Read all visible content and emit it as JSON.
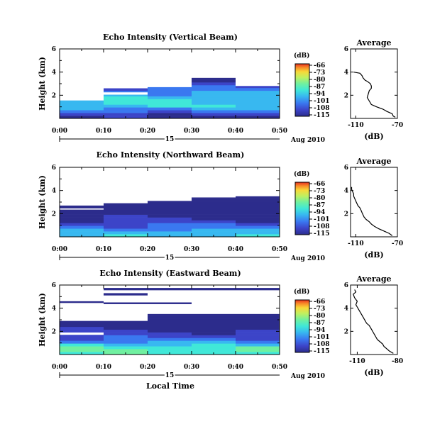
{
  "colors": {
    "scale": [
      "#2c2c8c",
      "#3c44c8",
      "#3a78f0",
      "#38b8f0",
      "#40e8d8",
      "#70f0a0",
      "#c0f060",
      "#f8d838",
      "#f88c28",
      "#e83020"
    ],
    "line": "#000000",
    "background": "#ffffff"
  },
  "common": {
    "xlabel": "Local Time",
    "date_day": "15",
    "date_month_year": "Aug 2010",
    "xticks": [
      "0:00",
      "0:10",
      "0:20",
      "0:30",
      "0:40",
      "0:50"
    ],
    "yticks_main": [
      "2",
      "4",
      "6"
    ],
    "ylabel_main": "Height (km)",
    "colorbar_unit": "(dB)",
    "colorbar_ticks": [
      "-66",
      "-73",
      "-80",
      "-87",
      "-94",
      "-101",
      "-108",
      "-115"
    ],
    "avg_title": "Average",
    "avg_xlabel": "(dB)",
    "avg_yticks": [
      "2",
      "4",
      "6"
    ]
  },
  "chart_data": [
    {
      "type": "heatmap",
      "title": "Echo Intensity (Vertical Beam)",
      "x_range_min": [
        0,
        50
      ],
      "ylim_km": [
        0,
        6
      ],
      "zlim_db": [
        -115,
        -66
      ],
      "ceiling_steps_km": [
        {
          "from_min": 0,
          "to_min": 10,
          "top_km": 1.55
        },
        {
          "from_min": 10,
          "to_min": 20,
          "top_km": 2.6
        },
        {
          "from_min": 20,
          "to_min": 30,
          "top_km": 2.7
        },
        {
          "from_min": 30,
          "to_min": 40,
          "top_km": 3.5
        },
        {
          "from_min": 40,
          "to_min": 50,
          "top_km": 2.8
        }
      ],
      "gaps_km": [
        {
          "from_min": 10,
          "to_min": 20,
          "y0": 2.05,
          "y1": 2.25
        }
      ],
      "profile_db": [
        -112,
        -108,
        -104,
        -100,
        -97,
        -95,
        -95,
        -97,
        -99,
        -101,
        -103,
        -105,
        -107,
        -109,
        -111,
        -113,
        -114,
        -115,
        -115,
        -115,
        -115,
        -115,
        -115,
        -115,
        -115
      ],
      "average": {
        "xlim_db": [
          -115,
          -70
        ],
        "xticks": [
          "-110",
          "-70"
        ],
        "height_km": [
          0.1,
          0.2,
          0.4,
          0.6,
          0.8,
          1.0,
          1.2,
          1.5,
          1.8,
          2.1,
          2.4,
          2.6,
          2.8,
          3.0,
          3.2,
          3.3,
          3.5,
          3.7,
          3.9,
          4.0
        ],
        "value_db": [
          -72,
          -74,
          -75,
          -80,
          -84,
          -90,
          -95,
          -97,
          -99,
          -98,
          -97,
          -95,
          -95,
          -96,
          -99,
          -101,
          -103,
          -104,
          -106,
          -112
        ]
      }
    },
    {
      "type": "heatmap",
      "title": "Echo Intensity (Northward Beam)",
      "x_range_min": [
        0,
        50
      ],
      "ylim_km": [
        0,
        6
      ],
      "zlim_db": [
        -115,
        -66
      ],
      "ceiling_steps_km": [
        {
          "from_min": 0,
          "to_min": 10,
          "top_km": 2.7
        },
        {
          "from_min": 10,
          "to_min": 20,
          "top_km": 2.9
        },
        {
          "from_min": 20,
          "to_min": 30,
          "top_km": 3.1
        },
        {
          "from_min": 30,
          "to_min": 40,
          "top_km": 3.4
        },
        {
          "from_min": 40,
          "to_min": 50,
          "top_km": 3.5
        }
      ],
      "gaps_km": [
        {
          "from_min": 0,
          "to_min": 10,
          "y0": 2.35,
          "y1": 2.45
        }
      ],
      "profile_db": [
        -96,
        -98,
        -100,
        -103,
        -106,
        -108,
        -110,
        -112,
        -113,
        -114,
        -115,
        -115,
        -115,
        -115,
        -115,
        -115,
        -115,
        -115,
        -115,
        -115,
        -115,
        -115,
        -115,
        -115,
        -115
      ],
      "average": {
        "xlim_db": [
          -115,
          -70
        ],
        "xticks": [
          "-110",
          "-70"
        ],
        "height_km": [
          0.1,
          0.3,
          0.5,
          0.7,
          0.9,
          1.1,
          1.3,
          1.5,
          1.7,
          1.9,
          2.1,
          2.3,
          2.5,
          2.7,
          2.9,
          3.1,
          3.3,
          3.5,
          3.7,
          3.9,
          4.1,
          4.3
        ],
        "value_db": [
          -75,
          -78,
          -83,
          -88,
          -92,
          -95,
          -97,
          -100,
          -102,
          -103,
          -104,
          -105,
          -106,
          -108,
          -109,
          -110,
          -111,
          -112,
          -112,
          -113,
          -114,
          -114
        ]
      }
    },
    {
      "type": "heatmap",
      "title": "Echo Intensity (Eastward Beam)",
      "x_range_min": [
        0,
        50
      ],
      "ylim_km": [
        0,
        6
      ],
      "zlim_db": [
        -115,
        -66
      ],
      "ceiling_steps_km": [
        {
          "from_min": 0,
          "to_min": 10,
          "top_km": 2.9
        },
        {
          "from_min": 10,
          "to_min": 20,
          "top_km": 2.9
        },
        {
          "from_min": 20,
          "to_min": 30,
          "top_km": 3.5
        },
        {
          "from_min": 30,
          "to_min": 40,
          "top_km": 3.5
        },
        {
          "from_min": 40,
          "to_min": 50,
          "top_km": 3.5
        }
      ],
      "gaps_km": [
        {
          "from_min": 0,
          "to_min": 10,
          "y0": 1.7,
          "y1": 1.9
        }
      ],
      "strips_km": [
        {
          "from_min": 10,
          "to_min": 50,
          "y0": 5.55,
          "y1": 5.75
        },
        {
          "from_min": 10,
          "to_min": 20,
          "y0": 5.1,
          "y1": 5.3
        },
        {
          "from_min": 0,
          "to_min": 10,
          "y0": 4.45,
          "y1": 4.6
        },
        {
          "from_min": 10,
          "to_min": 30,
          "y0": 4.35,
          "y1": 4.5
        }
      ],
      "profile_db": [
        -92,
        -90,
        -92,
        -96,
        -100,
        -104,
        -107,
        -109,
        -111,
        -112,
        -113,
        -114,
        -115,
        -115,
        -115,
        -115,
        -115,
        -115,
        -115,
        -115,
        -115,
        -115,
        -115,
        -115,
        -115
      ],
      "average": {
        "xlim_db": [
          -115,
          -80
        ],
        "xticks": [
          "-110",
          "-80"
        ],
        "height_km": [
          0.1,
          0.3,
          0.5,
          0.7,
          0.9,
          1.1,
          1.3,
          1.5,
          1.7,
          1.9,
          2.1,
          2.3,
          2.5,
          2.7,
          2.9,
          3.1,
          3.3,
          3.5,
          3.7,
          3.9,
          4.1,
          4.3,
          4.6,
          4.9,
          5.2,
          5.4,
          5.6
        ],
        "value_db": [
          -83,
          -86,
          -88,
          -90,
          -91,
          -93,
          -95,
          -96,
          -97,
          -98,
          -99,
          -100,
          -101,
          -103,
          -104,
          -105,
          -106,
          -107,
          -108,
          -109,
          -110,
          -111,
          -110,
          -112,
          -113,
          -111,
          -112
        ]
      }
    }
  ]
}
